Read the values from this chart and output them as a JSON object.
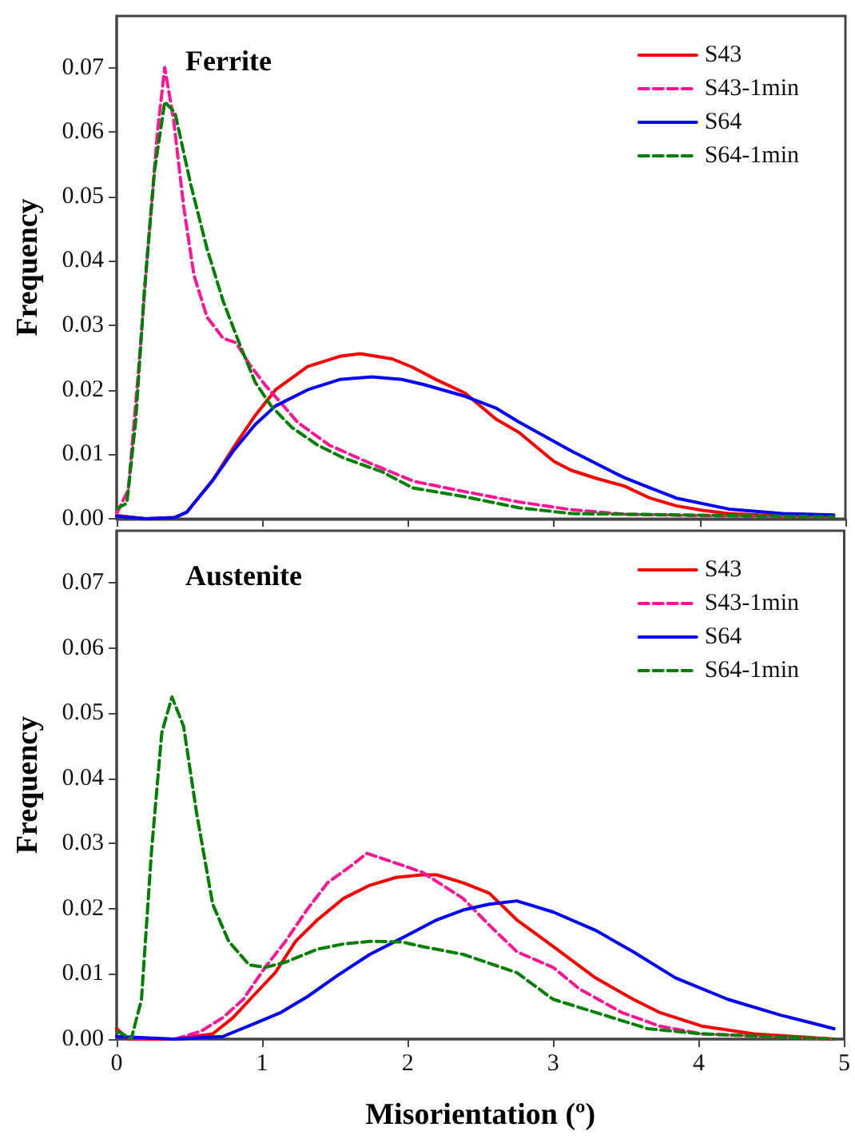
{
  "chart_data": [
    {
      "type": "line",
      "title": "Ferrite",
      "ylabel": "Frequency",
      "xlim": [
        0,
        5
      ],
      "xticks": [
        0,
        1,
        2,
        3,
        4,
        5
      ],
      "ylim": [
        0,
        0.078
      ],
      "yticks": [
        {
          "value": 0,
          "label": "0.00"
        },
        {
          "value": 0.01,
          "label": "0.01"
        },
        {
          "value": 0.02,
          "label": "0.02"
        },
        {
          "value": 0.03,
          "label": "0.03"
        },
        {
          "value": 0.04,
          "label": "0.04"
        },
        {
          "value": 0.05,
          "label": "0.05"
        },
        {
          "value": 0.06,
          "label": "0.06"
        },
        {
          "value": 0.07,
          "label": "0.07"
        }
      ],
      "tick_labels": "y",
      "legend": "top right",
      "marker": "none",
      "grid": false,
      "series": [
        {
          "name": "S43",
          "color": "#ff0000",
          "line_style": "solid",
          "x": [
            0,
            0.2,
            0.4,
            0.48,
            0.66,
            0.8,
            0.95,
            1.09,
            1.31,
            1.53,
            1.67,
            1.89,
            2.03,
            2.2,
            2.39,
            2.6,
            2.76,
            3.0,
            3.12,
            3.3,
            3.48,
            3.66,
            3.84,
            4.02,
            4.2,
            4.5,
            4.92
          ],
          "values": [
            0.0005,
            0,
            0.0002,
            0.001,
            0.006,
            0.011,
            0.016,
            0.02,
            0.0236,
            0.0252,
            0.0256,
            0.0248,
            0.0235,
            0.0215,
            0.0195,
            0.0155,
            0.0134,
            0.0089,
            0.0075,
            0.0062,
            0.0051,
            0.0032,
            0.002,
            0.0013,
            0.0008,
            0.0005,
            0.0003
          ]
        },
        {
          "name": "S43-1min",
          "color": "#ff1493",
          "line_style": "dashed",
          "x": [
            0,
            0.08,
            0.15,
            0.22,
            0.28,
            0.33,
            0.39,
            0.46,
            0.53,
            0.62,
            0.73,
            0.82,
            0.91,
            1.02,
            1.13,
            1.24,
            1.46,
            1.75,
            2.04,
            2.39,
            2.76,
            3.12,
            3.48,
            4.2,
            4.89
          ],
          "values": [
            0.0008,
            0.0045,
            0.023,
            0.0435,
            0.06,
            0.07,
            0.062,
            0.0484,
            0.0378,
            0.0313,
            0.028,
            0.0273,
            0.024,
            0.0207,
            0.0179,
            0.015,
            0.0114,
            0.0085,
            0.0058,
            0.0042,
            0.0026,
            0.0014,
            0.0007,
            0.0004,
            0.0003
          ]
        },
        {
          "name": "S64",
          "color": "#0000ff",
          "line_style": "solid",
          "x": [
            0,
            0.2,
            0.4,
            0.48,
            0.66,
            0.8,
            0.95,
            1.09,
            1.31,
            1.53,
            1.75,
            1.96,
            2.11,
            2.39,
            2.6,
            2.76,
            3.12,
            3.48,
            3.66,
            3.84,
            4.2,
            4.57,
            4.92
          ],
          "values": [
            0.0004,
            0,
            0.0002,
            0.001,
            0.006,
            0.0105,
            0.0146,
            0.0175,
            0.02,
            0.0216,
            0.022,
            0.0216,
            0.0208,
            0.019,
            0.0172,
            0.015,
            0.0105,
            0.0064,
            0.0048,
            0.0032,
            0.0015,
            0.0008,
            0.0006
          ]
        },
        {
          "name": "S64-1min",
          "color": "#008000",
          "line_style": "dashed",
          "x": [
            0,
            0.07,
            0.13,
            0.19,
            0.26,
            0.33,
            0.4,
            0.51,
            0.62,
            0.73,
            0.84,
            0.95,
            1.06,
            1.2,
            1.38,
            1.56,
            1.82,
            2.03,
            2.39,
            2.76,
            3.12,
            3.84,
            4.92
          ],
          "values": [
            0.0016,
            0.0024,
            0.015,
            0.0354,
            0.054,
            0.0647,
            0.063,
            0.0517,
            0.0419,
            0.0338,
            0.0273,
            0.0212,
            0.0175,
            0.0142,
            0.0114,
            0.0094,
            0.0073,
            0.0048,
            0.0034,
            0.0017,
            0.0008,
            0.0006,
            0.0003
          ]
        }
      ]
    },
    {
      "type": "line",
      "title": "Austenite",
      "xlabel": "Misorientation (º)",
      "ylabel": "Frequency",
      "xlim": [
        0,
        5
      ],
      "xticks": [
        0,
        1,
        2,
        3,
        4,
        5
      ],
      "ylim": [
        0,
        0.078
      ],
      "yticks": [
        {
          "value": 0,
          "label": "0.00"
        },
        {
          "value": 0.01,
          "label": "0.01"
        },
        {
          "value": 0.02,
          "label": "0.02"
        },
        {
          "value": 0.03,
          "label": "0.03"
        },
        {
          "value": 0.04,
          "label": "0.04"
        },
        {
          "value": 0.05,
          "label": "0.05"
        },
        {
          "value": 0.06,
          "label": "0.06"
        },
        {
          "value": 0.07,
          "label": "0.07"
        }
      ],
      "legend": "top right",
      "marker": "none",
      "grid": false,
      "series": [
        {
          "name": "S43",
          "color": "#ff0000",
          "line_style": "solid",
          "x": [
            0,
            0.08,
            0.4,
            0.66,
            0.8,
            0.95,
            1.09,
            1.23,
            1.38,
            1.56,
            1.74,
            1.92,
            2.1,
            2.2,
            2.38,
            2.56,
            2.75,
            3.0,
            3.29,
            3.55,
            3.73,
            4.02,
            4.38,
            4.93
          ],
          "values": [
            0.0016,
            0,
            0,
            0.0008,
            0.0033,
            0.0069,
            0.0102,
            0.015,
            0.0183,
            0.0216,
            0.0236,
            0.0248,
            0.0252,
            0.0252,
            0.024,
            0.0224,
            0.0183,
            0.0142,
            0.0094,
            0.0061,
            0.0041,
            0.002,
            0.0008,
            0
          ]
        },
        {
          "name": "S43-1min",
          "color": "#ff1493",
          "line_style": "dashed",
          "x": [
            0.4,
            0.58,
            0.73,
            0.87,
            1.02,
            1.16,
            1.31,
            1.45,
            1.6,
            1.72,
            1.88,
            2.1,
            2.38,
            2.56,
            2.75,
            3.0,
            3.18,
            3.47,
            3.73,
            4.02,
            4.93
          ],
          "values": [
            0,
            0.0012,
            0.0033,
            0.0061,
            0.011,
            0.015,
            0.0199,
            0.024,
            0.0264,
            0.0285,
            0.0273,
            0.0256,
            0.0216,
            0.0175,
            0.0134,
            0.011,
            0.0077,
            0.0041,
            0.002,
            0.0008,
            0
          ]
        },
        {
          "name": "S64",
          "color": "#0000ff",
          "line_style": "solid",
          "x": [
            0,
            0.4,
            0.73,
            0.95,
            1.13,
            1.31,
            1.52,
            1.74,
            1.96,
            2.2,
            2.38,
            2.56,
            2.75,
            3.0,
            3.29,
            3.55,
            3.84,
            4.2,
            4.56,
            4.93
          ],
          "values": [
            0.0004,
            0,
            0.0004,
            0.0024,
            0.0041,
            0.0065,
            0.0098,
            0.013,
            0.0155,
            0.0183,
            0.0198,
            0.0207,
            0.0212,
            0.0195,
            0.0167,
            0.0134,
            0.0094,
            0.0061,
            0.0037,
            0.0016
          ]
        },
        {
          "name": "S64-1min",
          "color": "#008000",
          "line_style": "dashed",
          "x": [
            0,
            0.04,
            0.1,
            0.17,
            0.24,
            0.31,
            0.38,
            0.46,
            0.55,
            0.66,
            0.77,
            0.91,
            1.02,
            1.16,
            1.38,
            1.56,
            1.74,
            1.96,
            2.1,
            2.38,
            2.75,
            3.0,
            3.29,
            3.65,
            4.02,
            4.5,
            4.93
          ],
          "values": [
            0.0012,
            0.0008,
            0,
            0.006,
            0.029,
            0.047,
            0.0525,
            0.048,
            0.0346,
            0.0207,
            0.015,
            0.0114,
            0.011,
            0.0118,
            0.0138,
            0.0146,
            0.015,
            0.0149,
            0.0142,
            0.013,
            0.0102,
            0.0061,
            0.0041,
            0.0016,
            0.0008,
            0.0004,
            0
          ]
        }
      ]
    }
  ]
}
